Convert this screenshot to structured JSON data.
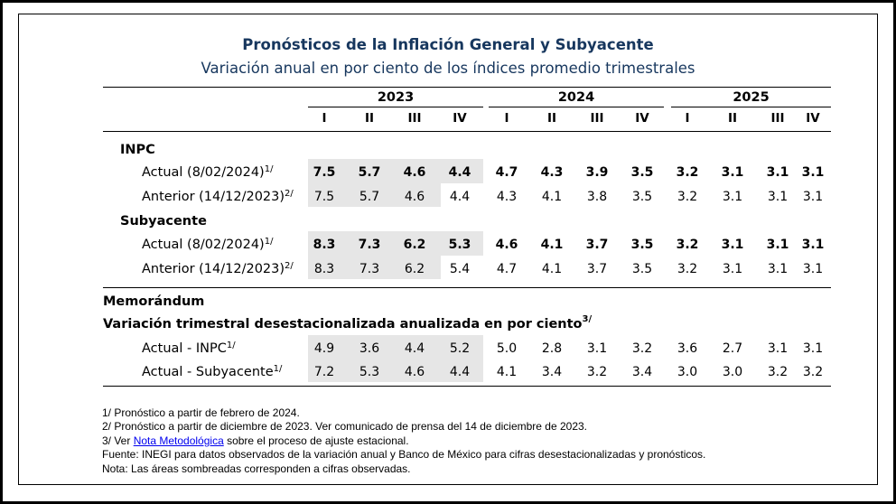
{
  "title": "Pronósticos de la Inflación General y Subyacente",
  "subtitle": "Variación anual en por ciento de los índices promedio trimestrales",
  "years": [
    "2023",
    "2024",
    "2025"
  ],
  "quarters": [
    "I",
    "II",
    "III",
    "IV",
    "I",
    "II",
    "III",
    "IV",
    "I",
    "II",
    "III",
    "IV"
  ],
  "sections": {
    "inpc": "INPC",
    "subyacente": "Subyacente",
    "memorandum": "Memorándum",
    "variacion": "Variación trimestral desestacionalizada anualizada en por ciento",
    "variacion_sup": "3/"
  },
  "rows": [
    {
      "label": "Actual (8/02/2024)",
      "sup": "1/",
      "bold": true,
      "values": [
        "7.5",
        "5.7",
        "4.6",
        "4.4",
        "4.7",
        "4.3",
        "3.9",
        "3.5",
        "3.2",
        "3.1",
        "3.1",
        "3.1"
      ]
    },
    {
      "label": "Anterior (14/12/2023)",
      "sup": "2/",
      "bold": false,
      "values": [
        "7.5",
        "5.7",
        "4.6",
        "4.4",
        "4.3",
        "4.1",
        "3.8",
        "3.5",
        "3.2",
        "3.1",
        "3.1",
        "3.1"
      ]
    },
    {
      "label": "Actual (8/02/2024)",
      "sup": "1/",
      "bold": true,
      "values": [
        "8.3",
        "7.3",
        "6.2",
        "5.3",
        "4.6",
        "4.1",
        "3.7",
        "3.5",
        "3.2",
        "3.1",
        "3.1",
        "3.1"
      ]
    },
    {
      "label": "Anterior (14/12/2023)",
      "sup": "2/",
      "bold": false,
      "values": [
        "8.3",
        "7.3",
        "6.2",
        "5.4",
        "4.7",
        "4.1",
        "3.7",
        "3.5",
        "3.2",
        "3.1",
        "3.1",
        "3.1"
      ]
    },
    {
      "label": "Actual - INPC",
      "sup": "1/",
      "bold": false,
      "values": [
        "4.9",
        "3.6",
        "4.4",
        "5.2",
        "5.0",
        "2.8",
        "3.1",
        "3.2",
        "3.6",
        "2.7",
        "3.1",
        "3.1"
      ]
    },
    {
      "label": "Actual - Subyacente",
      "sup": "1/",
      "bold": false,
      "values": [
        "7.2",
        "5.3",
        "4.6",
        "4.4",
        "4.1",
        "3.4",
        "3.2",
        "3.4",
        "3.0",
        "3.0",
        "3.2",
        "3.2"
      ]
    }
  ],
  "notes": {
    "n1": "1/ Pronóstico a partir de febrero de 2024.",
    "n2": "2/ Pronóstico a partir de diciembre de 2023. Ver comunicado de prensa del 14 de diciembre de 2023.",
    "n3_pre": "3/ Ver ",
    "n3_link": "Nota Metodológica",
    "n3_post": " sobre el proceso de ajuste estacional.",
    "fuente": "Fuente: INEGI para datos observados de la variación anual y Banco de México para cifras desestacionalizadas y pronósticos.",
    "nota": "Nota: Las áreas sombreadas corresponden a cifras observadas."
  }
}
